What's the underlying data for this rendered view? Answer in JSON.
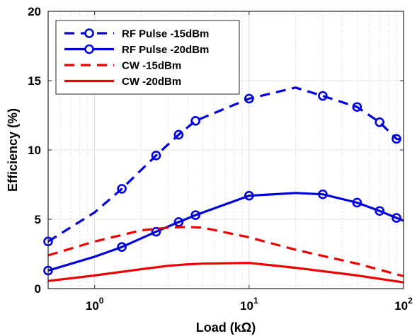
{
  "chart_data": {
    "type": "line",
    "title": "",
    "xlabel": "Load (kΩ)",
    "ylabel": "Efficiency (%)",
    "xscale": "log",
    "xlim": [
      0.5,
      100
    ],
    "ylim": [
      0,
      20
    ],
    "x_ticks": [
      {
        "value": 1,
        "base": "10",
        "exp": "0"
      },
      {
        "value": 10,
        "base": "10",
        "exp": "1"
      },
      {
        "value": 100,
        "base": "10",
        "exp": "2"
      }
    ],
    "y_ticks": [
      0,
      5,
      10,
      15,
      20
    ],
    "grid": "x-minor-dotted",
    "legend_position": "top-left",
    "series": [
      {
        "name": "RF Pulse -15dBm",
        "color": "#0000dd",
        "dash": "dashed",
        "marker": "circle",
        "x": [
          0.5,
          1,
          1.5,
          2.5,
          3.5,
          4.5,
          10,
          20,
          30,
          50,
          70,
          90,
          100
        ],
        "y": [
          3.4,
          5.5,
          7.2,
          9.6,
          11.1,
          12.1,
          13.7,
          14.5,
          13.9,
          13.1,
          12.0,
          10.8,
          10.7
        ],
        "marker_x": [
          0.5,
          1.5,
          2.5,
          3.5,
          4.5,
          10,
          30,
          50,
          70,
          90
        ]
      },
      {
        "name": "RF Pulse -20dBm",
        "color": "#0000dd",
        "dash": "solid",
        "marker": "circle",
        "x": [
          0.5,
          1,
          1.5,
          2.5,
          3.5,
          4.5,
          10,
          20,
          30,
          50,
          70,
          90,
          100
        ],
        "y": [
          1.3,
          2.3,
          3.0,
          4.1,
          4.8,
          5.3,
          6.7,
          6.9,
          6.8,
          6.2,
          5.6,
          5.1,
          4.9
        ],
        "marker_x": [
          0.5,
          1.5,
          2.5,
          3.5,
          4.5,
          10,
          30,
          50,
          70,
          90
        ]
      },
      {
        "name": "CW -15dBm",
        "color": "#ee0000",
        "dash": "dashed",
        "marker": "none",
        "x": [
          0.5,
          1,
          2,
          3,
          4,
          5,
          10,
          20,
          50,
          100
        ],
        "y": [
          2.4,
          3.4,
          4.2,
          4.4,
          4.45,
          4.4,
          3.7,
          2.8,
          1.8,
          0.9
        ]
      },
      {
        "name": "CW -20dBm",
        "color": "#ee0000",
        "dash": "solid",
        "marker": "none",
        "x": [
          0.5,
          1,
          2,
          3,
          4,
          5,
          10,
          20,
          50,
          100
        ],
        "y": [
          0.55,
          0.95,
          1.4,
          1.65,
          1.75,
          1.8,
          1.85,
          1.5,
          0.95,
          0.45
        ]
      }
    ]
  }
}
